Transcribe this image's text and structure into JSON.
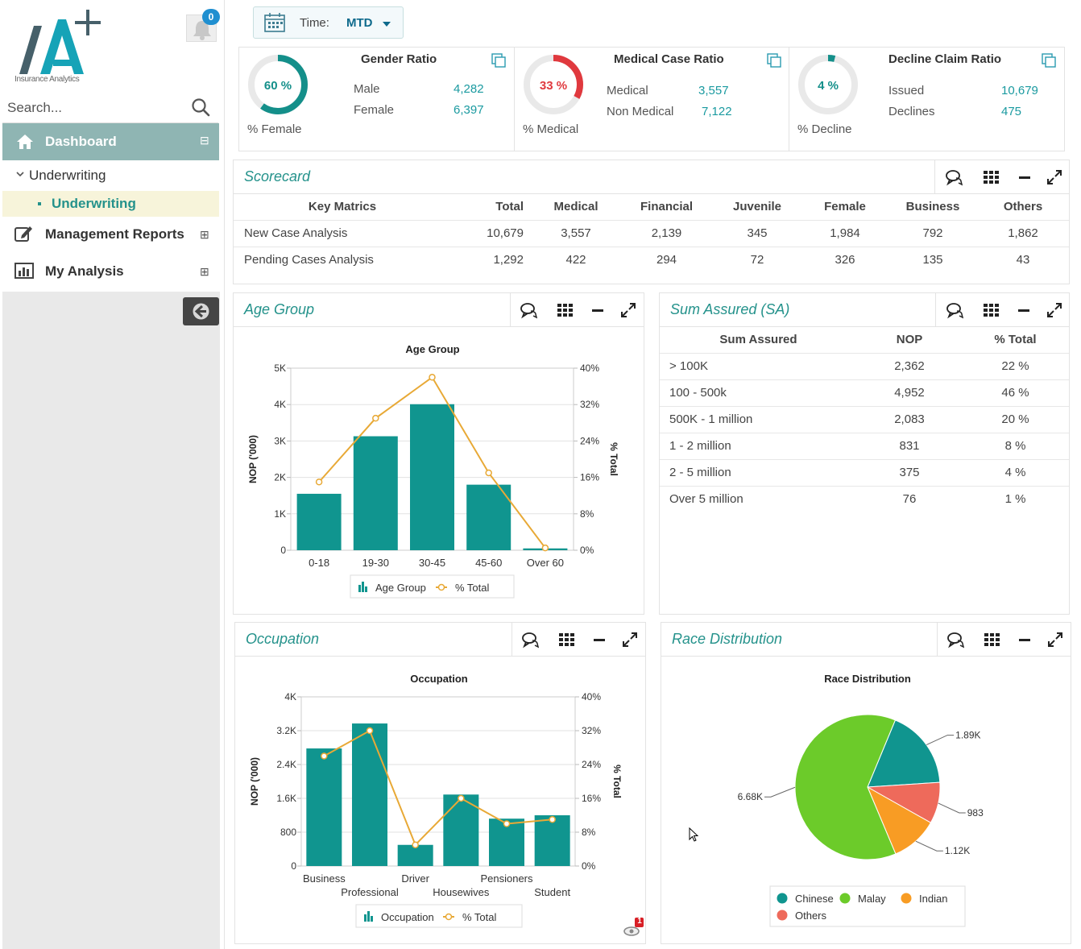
{
  "app": {
    "logo_text": "IA+",
    "logo_subtitle": "Insurance Analytics",
    "notification_count": "0"
  },
  "search": {
    "placeholder": "Search..."
  },
  "sidebar": {
    "items": [
      {
        "label": "Dashboard",
        "icon": "home-icon",
        "active": true,
        "toggle": "⊟"
      },
      {
        "label": "Underwriting",
        "icon": "chevron-down-icon",
        "expanded": true
      },
      {
        "label": "Underwriting",
        "selected": true
      },
      {
        "label": "Management Reports",
        "icon": "edit-icon",
        "toggle": "⊞"
      },
      {
        "label": "My Analysis",
        "icon": "bar-chart-icon",
        "toggle": "⊞"
      }
    ]
  },
  "filter": {
    "label": "Time:",
    "value": "MTD"
  },
  "kpis": [
    {
      "title": "Gender Ratio",
      "percent_label": "60 %",
      "percent": 60,
      "caption": "% Female",
      "color": "#148f8a",
      "rows": [
        {
          "label": "Male",
          "value": "4,282"
        },
        {
          "label": "Female",
          "value": "6,397"
        }
      ]
    },
    {
      "title": "Medical Case Ratio",
      "percent_label": "33 %",
      "percent": 33,
      "caption": "% Medical",
      "color": "#e0393e",
      "rows": [
        {
          "label": "Medical",
          "value": "3,557"
        },
        {
          "label": "Non Medical",
          "value": "7,122"
        }
      ]
    },
    {
      "title": "Decline Claim Ratio",
      "percent_label": "4 %",
      "percent": 4,
      "caption": "% Decline",
      "color": "#148f8a",
      "rows": [
        {
          "label": "Issued",
          "value": "10,679"
        },
        {
          "label": "Declines",
          "value": "475"
        }
      ]
    }
  ],
  "scorecard": {
    "title": "Scorecard",
    "columns": [
      "Key Matrics",
      "Total",
      "Medical",
      "Financial",
      "Juvenile",
      "Female",
      "Business",
      "Others"
    ],
    "rows": [
      [
        "New Case Analysis",
        "10,679",
        "3,557",
        "2,139",
        "345",
        "1,984",
        "792",
        "1,862"
      ],
      [
        "Pending Cases Analysis",
        "1,292",
        "422",
        "294",
        "72",
        "326",
        "135",
        "43"
      ]
    ]
  },
  "panels": {
    "age_group": "Age Group",
    "sum_assured": "Sum Assured (SA)",
    "occupation": "Occupation",
    "race": "Race Distribution"
  },
  "sum_assured_table": {
    "columns": [
      "Sum Assured",
      "NOP",
      "% Total"
    ],
    "rows": [
      [
        "> 100K",
        "2,362",
        "22 %"
      ],
      [
        "100 - 500k",
        "4,952",
        "46 %"
      ],
      [
        "500K - 1 million",
        "2,083",
        "20 %"
      ],
      [
        "1 - 2 million",
        "831",
        "8 %"
      ],
      [
        "2 - 5 million",
        "375",
        "4 %"
      ],
      [
        "Over 5 million",
        "76",
        "1 %"
      ]
    ]
  },
  "notification_badge": "1",
  "chart_data": [
    {
      "type": "bar",
      "title": "Age Group",
      "xlabel": "",
      "ylabel": "NOP ('000)",
      "y2label": "% Total",
      "categories": [
        "0-18",
        "19-30",
        "30-45",
        "45-60",
        "Over 60"
      ],
      "series": [
        {
          "name": "Age Group",
          "type": "bar",
          "values": [
            1550,
            3130,
            4010,
            1800,
            50
          ],
          "color": "#10958f"
        },
        {
          "name": "% Total",
          "type": "line",
          "axis": "right",
          "values": [
            15,
            29,
            38,
            17,
            0.5
          ],
          "color": "#e8a936"
        }
      ],
      "ylim": [
        0,
        5000
      ],
      "y2lim": [
        0,
        40
      ],
      "yticks": [
        "0",
        "1K",
        "2K",
        "3K",
        "4K",
        "5K"
      ],
      "y2ticks": [
        "0%",
        "8%",
        "16%",
        "24%",
        "32%",
        "40%"
      ],
      "grid": true,
      "legend": "bottom"
    },
    {
      "type": "bar",
      "title": "Occupation",
      "xlabel": "",
      "ylabel": "NOP ('000)",
      "y2label": "% Total",
      "categories": [
        "Business",
        "Professional",
        "Driver",
        "Housewives",
        "Pensioners",
        "Student"
      ],
      "series": [
        {
          "name": "Occupation",
          "type": "bar",
          "values": [
            2780,
            3370,
            500,
            1690,
            1120,
            1200
          ],
          "color": "#10958f"
        },
        {
          "name": "% Total",
          "type": "line",
          "axis": "right",
          "values": [
            26,
            32,
            5,
            16,
            10,
            11
          ],
          "color": "#e8a936"
        }
      ],
      "ylim": [
        0,
        4000
      ],
      "y2lim": [
        0,
        40
      ],
      "yticks": [
        "0",
        "800",
        "1.6K",
        "2.4K",
        "3.2K",
        "4K"
      ],
      "y2ticks": [
        "0%",
        "8%",
        "16%",
        "24%",
        "32%",
        "40%"
      ],
      "grid": true,
      "legend": "bottom"
    },
    {
      "type": "pie",
      "title": "Race Distribution",
      "labels": [
        "Chinese",
        "Others",
        "Indian",
        "Malay"
      ],
      "values": [
        1890,
        983,
        1120,
        6680
      ],
      "value_labels": [
        "1.89K",
        "983",
        "1.12K",
        "6.68K"
      ],
      "colors": [
        "#10958f",
        "#ee6a5b",
        "#f89c24",
        "#6ccb2a"
      ],
      "legend_order": [
        "Chinese",
        "Malay",
        "Indian",
        "Others"
      ],
      "legend": "bottom"
    }
  ]
}
